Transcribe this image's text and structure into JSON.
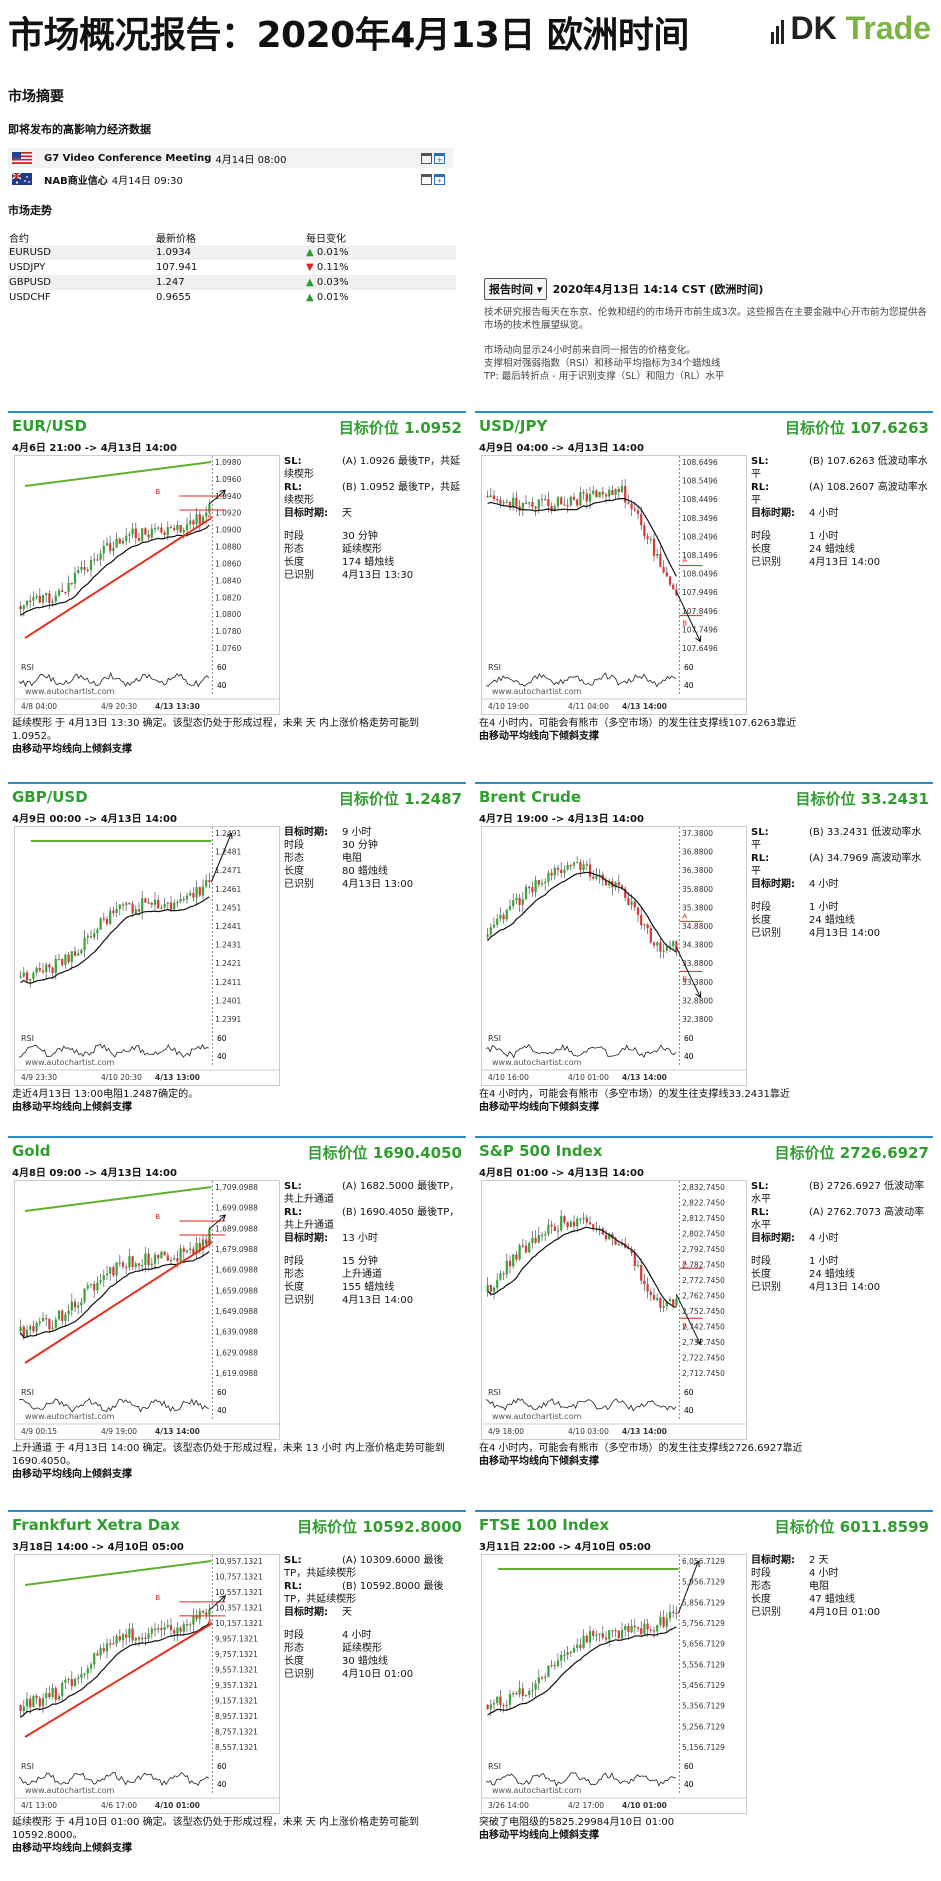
{
  "header": {
    "title": "市场概况报告：2020年4月13日 欧洲时间",
    "logo_mark": "DK",
    "logo_trade": "Trade"
  },
  "summary": {
    "heading": "市场摘要",
    "events_heading": "即将发布的高影响力经济数据",
    "trend_heading": "市场走势"
  },
  "events": [
    {
      "flag": "us",
      "name": "G7 Video Conference Meeting",
      "date": "4月14日 08:00"
    },
    {
      "flag": "au",
      "name": "NAB商业信心",
      "date": "4月14日 09:30"
    }
  ],
  "market": {
    "headers": [
      "合约",
      "最新价格",
      "每日变化"
    ],
    "rows": [
      {
        "sym": "EURUSD",
        "price": "1.0934",
        "dir": "up",
        "chg": "0.01%"
      },
      {
        "sym": "USDJPY",
        "price": "107.941",
        "dir": "down",
        "chg": "0.11%"
      },
      {
        "sym": "GBPUSD",
        "price": "1.247",
        "dir": "up",
        "chg": "0.03%"
      },
      {
        "sym": "USDCHF",
        "price": "0.9655",
        "dir": "up",
        "chg": "0.01%"
      }
    ]
  },
  "report": {
    "button": "报告时间",
    "date": "2020年4月13日 14:14 CST (欧洲时间)",
    "p1": "技术研究报告每天在东京、伦敦和纽约的市场开市前生成3次。这些报告在主要金融中心开市前为您提供各市场的技术性展望纵览。",
    "p2": "市场动向显示24小时前来自同一报告的价格变化。",
    "p3": "支撑相对强弱指数（RSI）和移动平均指标为34个蜡烛线",
    "p4": "TP: 最后转折点 - 用于识别支撑（SL）和阻力（RL）水平"
  },
  "colors": {
    "accent_blue": "#2a8fc9",
    "title_green": "#2f9e2f",
    "up": "#2e9b2e",
    "down": "#dd2222",
    "brand_green": "#7cb342"
  },
  "panels": [
    {
      "id": "eurusd",
      "title": "EUR/USD",
      "target": "目标价位 1.0952",
      "range": "4月6日 21:00 -> 4月13日 14:00",
      "info": [
        [
          "SL:",
          "(A) 1.0926 最後TP，共延续楔形"
        ],
        [
          "RL:",
          "(B) 1.0952 最後TP，共延续楔形"
        ],
        [
          "目标时期:",
          "天"
        ],
        [
          "",
          ""
        ],
        [
          "时段",
          "30 分钟"
        ],
        [
          "形态",
          "延续楔形"
        ],
        [
          "长度",
          "174 蜡烛线"
        ],
        [
          "已识别",
          "4月13日 13:30"
        ]
      ],
      "desc": "延续楔形 于 4月13日 13:30 确定。该型态仍处于形成过程，未来 天 内上涨价格走势可能到 1.0952。",
      "trend": "由移动平均线向上倾斜支撑",
      "yticks": [
        "1.0980",
        "1.0960",
        "1.0940",
        "1.0920",
        "1.0900",
        "1.0880",
        "1.0860",
        "1.0840",
        "1.0820",
        "1.0800",
        "1.0780",
        "1.0760"
      ],
      "xticks": [
        "4/8 04:00",
        "4/9 20:30",
        "4/13 13:30"
      ],
      "shape": "rise",
      "lines": "wedge"
    },
    {
      "id": "usdjpy",
      "title": "USD/JPY",
      "target": "目标价位 107.6263",
      "range": "4月9日 04:00 -> 4月13日 14:00",
      "info": [
        [
          "SL:",
          "(B) 107.6263 低波动率水平"
        ],
        [
          "RL:",
          "(A) 108.2607 高波动率水平"
        ],
        [
          "目标时期:",
          "4 小时"
        ],
        [
          "",
          ""
        ],
        [
          "时段",
          "1 小时"
        ],
        [
          "长度",
          "24 蜡烛线"
        ],
        [
          "已识别",
          "4月13日 14:00"
        ]
      ],
      "desc": "在4 小时内，可能会有熊市（多空市场）的发生往支撑线107.6263靠近",
      "trend": "由移动平均线向下倾斜支撑",
      "yticks": [
        "108.6496",
        "108.5496",
        "108.4496",
        "108.3496",
        "108.2496",
        "108.1496",
        "108.0496",
        "107.9496",
        "107.8496",
        "107.7496",
        "107.6496"
      ],
      "xticks": [
        "4/10 19:00",
        "4/11 04:00",
        "4/13 14:00"
      ],
      "shape": "fall",
      "lines": "levels"
    },
    {
      "id": "gbpusd",
      "title": "GBP/USD",
      "target": "目标价位 1.2487",
      "range": "4月9日 00:00 -> 4月13日 14:00",
      "info": [
        [
          "目标时期:",
          "9 小时"
        ],
        [
          "时段",
          "30 分钟"
        ],
        [
          "形态",
          "电阻"
        ],
        [
          "长度",
          "80 蜡烛线"
        ],
        [
          "已识别",
          "4月13日 13:00"
        ]
      ],
      "desc": "走近4月13日 13:00电阻1.2487确定的。",
      "trend": "由移动平均线向上倾斜支撑",
      "yticks": [
        "1.2491",
        "1.2481",
        "1.2471",
        "1.2461",
        "1.2451",
        "1.2441",
        "1.2431",
        "1.2421",
        "1.2411",
        "1.2401",
        "1.2391"
      ],
      "xticks": [
        "4/9 23:30",
        "4/10 20:30",
        "4/13 13:00"
      ],
      "shape": "rise",
      "lines": "resist"
    },
    {
      "id": "brent",
      "title": "Brent Crude",
      "target": "目标价位 33.2431",
      "range": "4月7日 19:00 -> 4月13日 14:00",
      "info": [
        [
          "SL:",
          "(B) 33.2431 低波动率水平"
        ],
        [
          "RL:",
          "(A) 34.7969 高波动率水平"
        ],
        [
          "目标时期:",
          "4 小时"
        ],
        [
          "",
          ""
        ],
        [
          "时段",
          "1 小时"
        ],
        [
          "长度",
          "24 蜡烛线"
        ],
        [
          "已识别",
          "4月13日 14:00"
        ]
      ],
      "desc": "在4 小时内，可能会有熊市（多空市场）的发生往支撑线33.2431靠近",
      "trend": "由移动平均线向下倾斜支撑",
      "yticks": [
        "37.3800",
        "36.8800",
        "36.3800",
        "35.8800",
        "35.3800",
        "34.8800",
        "34.3800",
        "33.8800",
        "33.3800",
        "32.8800",
        "32.3800"
      ],
      "xticks": [
        "4/10 16:00",
        "4/10 01:00",
        "4/13 14:00"
      ],
      "shape": "hump",
      "lines": "levels"
    },
    {
      "id": "gold",
      "title": "Gold",
      "target": "目标价位 1690.4050",
      "range": "4月8日 09:00 -> 4月13日 14:00",
      "info": [
        [
          "SL:",
          "(A) 1682.5000 最後TP，共上升通道"
        ],
        [
          "RL:",
          "(B) 1690.4050 最後TP，共上升通道"
        ],
        [
          "目标时期:",
          "13 小时"
        ],
        [
          "",
          ""
        ],
        [
          "时段",
          "15 分钟"
        ],
        [
          "形态",
          "上升通道"
        ],
        [
          "长度",
          "155 蜡烛线"
        ],
        [
          "已识别",
          "4月13日 14:00"
        ]
      ],
      "desc": "上升通道 于 4月13日 14:00 确定。该型态仍处于形成过程，未来 13 小时 内上涨价格走势可能到 1690.4050。",
      "trend": "由移动平均线向上倾斜支撑",
      "yticks": [
        "1,709.0988",
        "1,699.0988",
        "1,689.0988",
        "1,679.0988",
        "1,669.0988",
        "1,659.0988",
        "1,649.0988",
        "1,639.0988",
        "1,629.0988",
        "1,619.0988"
      ],
      "xticks": [
        "4/9 00:15",
        "4/9 19:00",
        "4/13 14:00"
      ],
      "shape": "rise",
      "lines": "wedge"
    },
    {
      "id": "sp500",
      "title": "S&P 500 Index",
      "target": "目标价位 2726.6927",
      "range": "4月8日 01:00 -> 4月13日 14:00",
      "info": [
        [
          "SL:",
          "(B) 2726.6927 低波动率水平"
        ],
        [
          "RL:",
          "(A) 2762.7073 高波动率水平"
        ],
        [
          "目标时期:",
          "4 小时"
        ],
        [
          "",
          ""
        ],
        [
          "时段",
          "1 小时"
        ],
        [
          "长度",
          "24 蜡烛线"
        ],
        [
          "已识别",
          "4月13日 14:00"
        ]
      ],
      "desc": "在4 小时内，可能会有熊市（多空市场）的发生往支撑线2726.6927靠近",
      "trend": "由移动平均线向下倾斜支撑",
      "yticks": [
        "2,832.7450",
        "2,822.7450",
        "2,812.7450",
        "2,802.7450",
        "2,792.7450",
        "2,782.7450",
        "2,772.7450",
        "2,762.7450",
        "2,752.7450",
        "2,742.7450",
        "2,732.7450",
        "2,722.7450",
        "2,712.7450"
      ],
      "xticks": [
        "4/9 18:00",
        "4/10 03:00",
        "4/13 14:00"
      ],
      "shape": "hump",
      "lines": "levels"
    },
    {
      "id": "dax",
      "title": "Frankfurt Xetra Dax",
      "target": "目标价位 10592.8000",
      "range": "3月18日 14:00 -> 4月10日 05:00",
      "info": [
        [
          "SL:",
          "(A) 10309.6000 最後TP，共延续楔形"
        ],
        [
          "RL:",
          "(B) 10592.8000 最後TP，共延续楔形"
        ],
        [
          "目标时期:",
          "天"
        ],
        [
          "",
          ""
        ],
        [
          "时段",
          "4 小时"
        ],
        [
          "形态",
          "延续楔形"
        ],
        [
          "长度",
          "30 蜡烛线"
        ],
        [
          "已识别",
          "4月10日 01:00"
        ]
      ],
      "desc": "延续楔形 于 4月10日 01:00 确定。该型态仍处于形成过程，未来 天 内上涨价格走势可能到 10592.8000。",
      "trend": "由移动平均线向上倾斜支撑",
      "yticks": [
        "10,957.1321",
        "10,757.1321",
        "10,557.1321",
        "10,357.1321",
        "10,157.1321",
        "9,957.1321",
        "9,757.1321",
        "9,557.1321",
        "9,357.1321",
        "9,157.1321",
        "8,957.1321",
        "8,757.1321",
        "8,557.1321"
      ],
      "xticks": [
        "4/1 13:00",
        "4/6 17:00",
        "4/10 01:00"
      ],
      "shape": "rise",
      "lines": "wedge"
    },
    {
      "id": "ftse",
      "title": "FTSE 100 Index",
      "target": "目标价位 6011.8599",
      "range": "3月11日 22:00 -> 4月10日 05:00",
      "info": [
        [
          "目标时期:",
          "2 天"
        ],
        [
          "时段",
          "4 小时"
        ],
        [
          "形态",
          "电阻"
        ],
        [
          "长度",
          "47 蜡烛线"
        ],
        [
          "已识别",
          "4月10日 01:00"
        ]
      ],
      "desc": "突破了电阻级的5825.29984月10日 01:00",
      "trend": "由移动平均线向上倾斜支撑",
      "yticks": [
        "6,056.7129",
        "5,956.7129",
        "5,856.7129",
        "5,756.7129",
        "5,656.7129",
        "5,556.7129",
        "5,456.7129",
        "5,356.7129",
        "5,256.7129",
        "5,156.7129"
      ],
      "xticks": [
        "3/26 14:00",
        "4/2 17:00",
        "4/10 01:00"
      ],
      "shape": "rise",
      "lines": "resist"
    }
  ],
  "chart_labels": {
    "rsi": "RSI",
    "watermark": "www.autochartist.com",
    "rsi_60": "60",
    "rsi_40": "40",
    "label_a": "A",
    "label_b": "B"
  }
}
